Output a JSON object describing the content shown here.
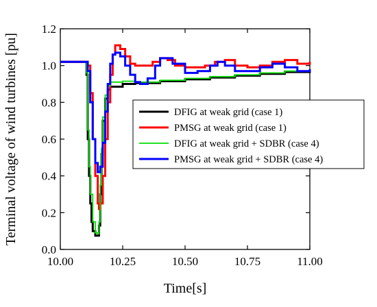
{
  "chart_data": {
    "type": "line",
    "title": "",
    "xlabel": "Time[s]",
    "ylabel": "Terminal voltage of wind turbines [pu]",
    "xlim": [
      10.0,
      11.0
    ],
    "ylim": [
      0.0,
      1.2
    ],
    "x_ticks": [
      "10.00",
      "10.25",
      "10.50",
      "10.75",
      "11.00"
    ],
    "y_ticks": [
      "0.0",
      "0.2",
      "0.4",
      "0.6",
      "0.8",
      "1.0",
      "1.2"
    ],
    "grid": false,
    "legend_position": "center-right",
    "series": [
      {
        "name": "DFIG at weak grid (case 1)",
        "color": "#000000",
        "points": [
          [
            10.0,
            1.02
          ],
          [
            10.1,
            1.02
          ],
          [
            10.105,
            0.95
          ],
          [
            10.11,
            0.6
          ],
          [
            10.115,
            0.4
          ],
          [
            10.12,
            0.25
          ],
          [
            10.125,
            0.15
          ],
          [
            10.13,
            0.1
          ],
          [
            10.14,
            0.075
          ],
          [
            10.15,
            0.075
          ],
          [
            10.155,
            0.13
          ],
          [
            10.16,
            0.3
          ],
          [
            10.165,
            0.52
          ],
          [
            10.17,
            0.7
          ],
          [
            10.18,
            0.82
          ],
          [
            10.19,
            0.87
          ],
          [
            10.2,
            0.885
          ],
          [
            10.25,
            0.9
          ],
          [
            10.3,
            0.905
          ],
          [
            10.4,
            0.915
          ],
          [
            10.5,
            0.925
          ],
          [
            10.6,
            0.935
          ],
          [
            10.7,
            0.945
          ],
          [
            10.8,
            0.955
          ],
          [
            10.9,
            0.965
          ],
          [
            11.0,
            0.97
          ]
        ]
      },
      {
        "name": "PMSG at weak grid (case 1)",
        "color": "#ff0000",
        "points": [
          [
            10.0,
            1.02
          ],
          [
            10.1,
            1.02
          ],
          [
            10.11,
            1.0
          ],
          [
            10.12,
            0.85
          ],
          [
            10.13,
            0.6
          ],
          [
            10.14,
            0.4
          ],
          [
            10.15,
            0.25
          ],
          [
            10.155,
            0.22
          ],
          [
            10.16,
            0.25
          ],
          [
            10.17,
            0.4
          ],
          [
            10.18,
            0.6
          ],
          [
            10.19,
            0.8
          ],
          [
            10.2,
            0.95
          ],
          [
            10.21,
            1.06
          ],
          [
            10.22,
            1.11
          ],
          [
            10.23,
            1.11
          ],
          [
            10.24,
            1.09
          ],
          [
            10.26,
            1.05
          ],
          [
            10.28,
            1.01
          ],
          [
            10.3,
            1.0
          ],
          [
            10.34,
            1.0
          ],
          [
            10.37,
            1.02
          ],
          [
            10.4,
            1.04
          ],
          [
            10.43,
            1.03
          ],
          [
            10.46,
            1.0
          ],
          [
            10.5,
            0.99
          ],
          [
            10.55,
            0.99
          ],
          [
            10.58,
            1.0
          ],
          [
            10.62,
            1.02
          ],
          [
            10.66,
            1.03
          ],
          [
            10.7,
            1.0
          ],
          [
            10.75,
            0.99
          ],
          [
            10.8,
            1.0
          ],
          [
            10.85,
            1.02
          ],
          [
            10.9,
            1.03
          ],
          [
            10.95,
            1.01
          ],
          [
            11.0,
            1.02
          ]
        ]
      },
      {
        "name": "DFIG at weak grid + SDBR (case 4)",
        "color": "#00dd00",
        "points": [
          [
            10.0,
            1.02
          ],
          [
            10.1,
            1.02
          ],
          [
            10.105,
            0.96
          ],
          [
            10.11,
            0.65
          ],
          [
            10.115,
            0.45
          ],
          [
            10.12,
            0.3
          ],
          [
            10.13,
            0.15
          ],
          [
            10.14,
            0.09
          ],
          [
            10.15,
            0.085
          ],
          [
            10.155,
            0.15
          ],
          [
            10.16,
            0.35
          ],
          [
            10.165,
            0.55
          ],
          [
            10.17,
            0.72
          ],
          [
            10.18,
            0.84
          ],
          [
            10.19,
            0.89
          ],
          [
            10.2,
            0.91
          ],
          [
            10.25,
            0.915
          ],
          [
            10.3,
            0.91
          ],
          [
            10.4,
            0.92
          ],
          [
            10.5,
            0.93
          ],
          [
            10.6,
            0.94
          ],
          [
            10.7,
            0.95
          ],
          [
            10.8,
            0.96
          ],
          [
            10.9,
            0.97
          ],
          [
            11.0,
            0.975
          ]
        ]
      },
      {
        "name": "PMSG at weak grid + SDBR (case 4)",
        "color": "#0000ff",
        "points": [
          [
            10.0,
            1.02
          ],
          [
            10.1,
            1.02
          ],
          [
            10.11,
            0.97
          ],
          [
            10.12,
            0.8
          ],
          [
            10.13,
            0.6
          ],
          [
            10.14,
            0.47
          ],
          [
            10.15,
            0.42
          ],
          [
            10.16,
            0.45
          ],
          [
            10.17,
            0.58
          ],
          [
            10.18,
            0.75
          ],
          [
            10.19,
            0.9
          ],
          [
            10.2,
            1.01
          ],
          [
            10.21,
            1.06
          ],
          [
            10.22,
            1.07
          ],
          [
            10.24,
            1.05
          ],
          [
            10.26,
            1.0
          ],
          [
            10.28,
            0.95
          ],
          [
            10.3,
            0.91
          ],
          [
            10.32,
            0.9
          ],
          [
            10.35,
            0.93
          ],
          [
            10.38,
            1.0
          ],
          [
            10.4,
            1.04
          ],
          [
            10.42,
            1.04
          ],
          [
            10.45,
            1.01
          ],
          [
            10.5,
            0.96
          ],
          [
            10.55,
            0.97
          ],
          [
            10.6,
            1.0
          ],
          [
            10.63,
            1.02
          ],
          [
            10.66,
            1.0
          ],
          [
            10.7,
            0.97
          ],
          [
            10.75,
            0.97
          ],
          [
            10.8,
            0.99
          ],
          [
            10.85,
            1.01
          ],
          [
            10.9,
            0.99
          ],
          [
            10.95,
            0.97
          ],
          [
            11.0,
            0.98
          ]
        ]
      }
    ]
  }
}
